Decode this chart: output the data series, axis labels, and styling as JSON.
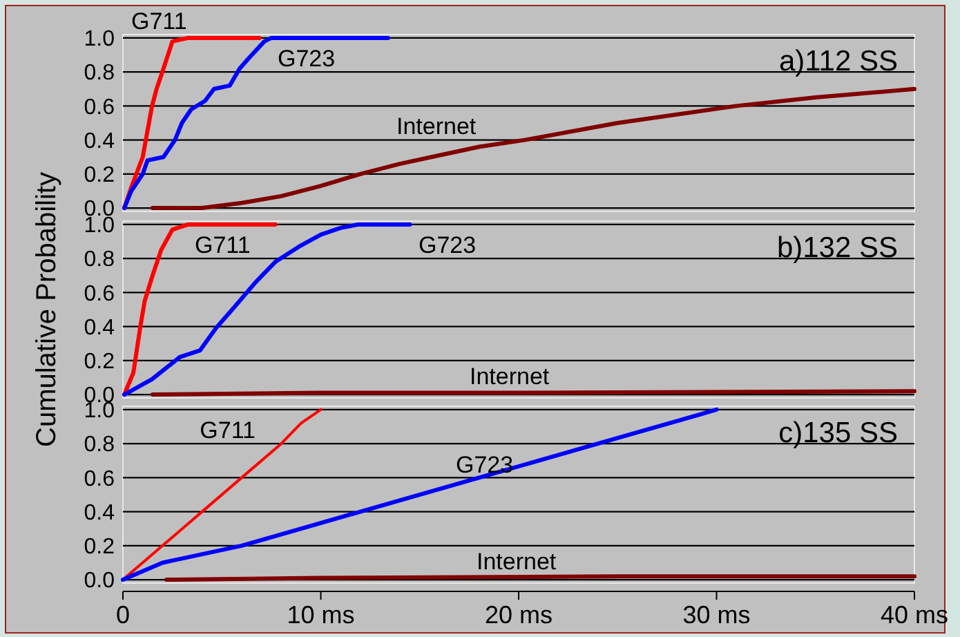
{
  "chart_data": [
    {
      "type": "line",
      "title": "a)112 SS",
      "xlim": [
        0,
        40
      ],
      "ylim": [
        -0.02,
        1.02
      ],
      "yticks": [
        {
          "value": 0,
          "label": "0.0"
        },
        {
          "value": 0.2,
          "label": "0.2"
        },
        {
          "value": 0.4,
          "label": "0.4"
        },
        {
          "value": 0.6,
          "label": "0.6"
        },
        {
          "value": 0.8,
          "label": "0.8"
        },
        {
          "value": 1,
          "label": "1.0"
        }
      ],
      "grid": "y",
      "tick_labels": "y",
      "series": [
        {
          "name": "G711",
          "color": "#ff0000",
          "x": [
            0.07,
            0.42,
            1.0,
            1.47,
            1.7,
            2.05,
            2.5,
            3.3,
            6.9
          ],
          "values": [
            0,
            0.12,
            0.3,
            0.6,
            0.7,
            0.82,
            0.98,
            1.0,
            1.0
          ]
        },
        {
          "name": "G723",
          "color": "#0000ff",
          "x": [
            0.07,
            0.42,
            1.0,
            1.24,
            2.05,
            2.63,
            2.98,
            3.45,
            4.15,
            4.6,
            5.4,
            5.9,
            6.35,
            7.15,
            7.5,
            13.4
          ],
          "values": [
            0,
            0.1,
            0.2,
            0.28,
            0.3,
            0.4,
            0.5,
            0.58,
            0.63,
            0.7,
            0.72,
            0.82,
            0.88,
            0.98,
            1.0,
            1.0
          ]
        },
        {
          "name": "Internet",
          "color": "#800000",
          "x": [
            1.5,
            4,
            6,
            8,
            10,
            12,
            14,
            16,
            18,
            20.3,
            25,
            31,
            35,
            40
          ],
          "values": [
            0,
            0,
            0.03,
            0.07,
            0.13,
            0.2,
            0.26,
            0.31,
            0.36,
            0.4,
            0.5,
            0.6,
            0.65,
            0.7
          ]
        }
      ]
    },
    {
      "type": "line",
      "title": "b)132 SS",
      "ylabel": "Cumulative Probability",
      "xlim": [
        0,
        40
      ],
      "ylim": [
        -0.02,
        1.02
      ],
      "yticks": [
        {
          "value": 0,
          "label": "0.0"
        },
        {
          "value": 0.2,
          "label": "0.2"
        },
        {
          "value": 0.4,
          "label": "0.4"
        },
        {
          "value": 0.6,
          "label": "0.6"
        },
        {
          "value": 0.8,
          "label": "0.8"
        },
        {
          "value": 1,
          "label": "1.0"
        }
      ],
      "grid": "y",
      "tick_labels": "y",
      "series": [
        {
          "name": "G711",
          "color": "#ff0000",
          "x": [
            0.07,
            0.53,
            0.88,
            1.1,
            1.47,
            1.93,
            2.5,
            3.3,
            7.7
          ],
          "values": [
            0,
            0.13,
            0.4,
            0.55,
            0.69,
            0.85,
            0.97,
            1.0,
            1.0
          ]
        },
        {
          "name": "G723",
          "color": "#0000ff",
          "x": [
            0.07,
            1.47,
            2.87,
            3.9,
            4.7,
            5.6,
            6.7,
            7.7,
            8.9,
            10,
            11,
            11.9,
            14.5
          ],
          "values": [
            0,
            0.09,
            0.22,
            0.26,
            0.39,
            0.51,
            0.66,
            0.78,
            0.87,
            0.94,
            0.98,
            1.0,
            1.0
          ]
        },
        {
          "name": "Internet",
          "color": "#800000",
          "x": [
            1.5,
            10,
            20,
            40
          ],
          "values": [
            0,
            0.01,
            0.01,
            0.02
          ]
        }
      ]
    },
    {
      "type": "line",
      "title": "c)135 SS",
      "xlim": [
        0,
        40
      ],
      "ylim": [
        -0.02,
        1.02
      ],
      "xticks": [
        {
          "value": 0,
          "label": "0"
        },
        {
          "value": 10,
          "label": "10 ms"
        },
        {
          "value": 20,
          "label": "20 ms"
        },
        {
          "value": 30,
          "label": "30 ms"
        },
        {
          "value": 40,
          "label": "40 ms"
        }
      ],
      "yticks": [
        {
          "value": 0,
          "label": "0.0"
        },
        {
          "value": 0.2,
          "label": "0.2"
        },
        {
          "value": 0.4,
          "label": "0.4"
        },
        {
          "value": 0.6,
          "label": "0.6"
        },
        {
          "value": 0.8,
          "label": "0.8"
        },
        {
          "value": 1,
          "label": "1.0"
        }
      ],
      "grid": "y",
      "series": [
        {
          "name": "G711",
          "color": "#ff0000",
          "x": [
            0,
            2,
            4,
            6,
            8,
            9,
            10
          ],
          "values": [
            0,
            0.2,
            0.4,
            0.6,
            0.8,
            0.92,
            1.0
          ]
        },
        {
          "name": "G723",
          "color": "#0000ff",
          "x": [
            0,
            2,
            6,
            12,
            18,
            24,
            30
          ],
          "values": [
            0,
            0.1,
            0.2,
            0.4,
            0.6,
            0.8,
            1.0
          ]
        },
        {
          "name": "Internet",
          "color": "#800000",
          "x": [
            2.2,
            10,
            25,
            40
          ],
          "values": [
            0,
            0.01,
            0.02,
            0.02
          ]
        }
      ]
    }
  ]
}
